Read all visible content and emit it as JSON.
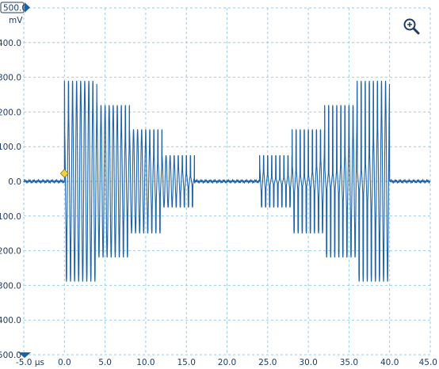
{
  "channel": {
    "range_label": "500.0",
    "unit": "mV",
    "range_marker_icon": "triangle-right-icon",
    "offset_marker_icon": "triangle-down-icon"
  },
  "toolbar": {
    "zoom_icon": "zoom-in-icon"
  },
  "trigger": {
    "icon": "diamond-icon",
    "time_us": 0.0,
    "level_mv": 0.0,
    "color": "#f2d23c"
  },
  "colors": {
    "trace": "#1a63a8",
    "grid": "#9ccbe3",
    "axis_text": "#1c3c6b"
  },
  "chart_data": {
    "type": "line",
    "title": "",
    "xlabel": "",
    "ylabel": "mV",
    "x_unit": "µs",
    "xlim": [
      -5.0,
      45.0
    ],
    "ylim": [
      -500.0,
      500.0
    ],
    "grid": true,
    "x_ticks": [
      "-5.0 µs",
      "0.0",
      "5.0",
      "10.0",
      "15.0",
      "20.0",
      "25.0",
      "30.0",
      "35.0",
      "40.0",
      "45.0"
    ],
    "y_ticks": [
      "400.0",
      "300.0",
      "200.0",
      "100.0",
      "0.0",
      "-100.0",
      "-200.0",
      "-300.0",
      "-400.0",
      "-500.0"
    ],
    "series": [
      {
        "carrier_period_us": 0.5,
        "segments": [
          {
            "t_start": -5.0,
            "t_end": 0.0,
            "amplitude_mv": 0
          },
          {
            "t_start": 0.0,
            "t_end": 4.0,
            "amplitude_mv": 290
          },
          {
            "t_start": 4.0,
            "t_end": 8.0,
            "amplitude_mv": 220
          },
          {
            "t_start": 8.0,
            "t_end": 12.0,
            "amplitude_mv": 150
          },
          {
            "t_start": 12.0,
            "t_end": 16.0,
            "amplitude_mv": 75
          },
          {
            "t_start": 16.0,
            "t_end": 24.0,
            "amplitude_mv": 0
          },
          {
            "t_start": 24.0,
            "t_end": 28.0,
            "amplitude_mv": 75
          },
          {
            "t_start": 28.0,
            "t_end": 32.0,
            "amplitude_mv": 150
          },
          {
            "t_start": 32.0,
            "t_end": 36.0,
            "amplitude_mv": 220
          },
          {
            "t_start": 36.0,
            "t_end": 40.0,
            "amplitude_mv": 290
          },
          {
            "t_start": 40.0,
            "t_end": 45.0,
            "amplitude_mv": 0
          }
        ]
      }
    ]
  }
}
